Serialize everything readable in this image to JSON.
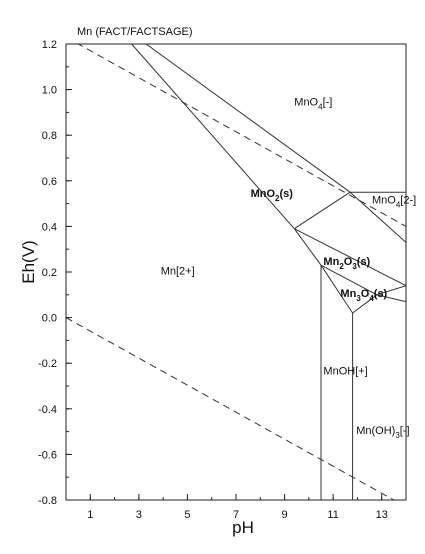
{
  "chart_data": {
    "type": "line",
    "title": "Mn (FACT/FACTSAGE)",
    "xlabel": "pH",
    "ylabel": "Eh(V)",
    "xlim": [
      0,
      14
    ],
    "ylim": [
      -0.8,
      1.2
    ],
    "x_ticks": [
      {
        "value": 1,
        "label": "1"
      },
      {
        "value": 3,
        "label": "3"
      },
      {
        "value": 5,
        "label": "5"
      },
      {
        "value": 7,
        "label": "7"
      },
      {
        "value": 9,
        "label": "9"
      },
      {
        "value": 11,
        "label": "11"
      },
      {
        "value": 13,
        "label": "13"
      }
    ],
    "y_ticks": [
      {
        "value": 1.2,
        "label": "1.2"
      },
      {
        "value": 1.0,
        "label": "1.0"
      },
      {
        "value": 0.8,
        "label": "0.8"
      },
      {
        "value": 0.6,
        "label": "0.6"
      },
      {
        "value": 0.4,
        "label": "0.4"
      },
      {
        "value": 0.2,
        "label": "0.2"
      },
      {
        "value": 0.0,
        "label": "0.0"
      },
      {
        "value": -0.2,
        "label": "-0.2"
      },
      {
        "value": -0.4,
        "label": "-0.4"
      },
      {
        "value": -0.6,
        "label": "-0.6"
      },
      {
        "value": -0.8,
        "label": "-0.8"
      }
    ],
    "water_lines": [
      {
        "style": "dashed",
        "points": [
          [
            0,
            1.23
          ],
          [
            14,
            0.4
          ]
        ]
      },
      {
        "style": "dashed",
        "points": [
          [
            0,
            0.0
          ],
          [
            13.5,
            -0.8
          ]
        ]
      }
    ],
    "boundaries": [
      {
        "points": [
          [
            2.7,
            1.2
          ],
          [
            9.4,
            0.39
          ]
        ]
      },
      {
        "points": [
          [
            3.3,
            1.2
          ],
          [
            11.7,
            0.55
          ]
        ]
      },
      {
        "points": [
          [
            11.7,
            0.55
          ],
          [
            14,
            0.33
          ]
        ]
      },
      {
        "points": [
          [
            11.7,
            0.55
          ],
          [
            14,
            0.55
          ]
        ]
      },
      {
        "points": [
          [
            11.7,
            0.55
          ],
          [
            9.4,
            0.39
          ]
        ]
      },
      {
        "points": [
          [
            9.4,
            0.39
          ],
          [
            10.5,
            0.23
          ]
        ]
      },
      {
        "points": [
          [
            9.4,
            0.39
          ],
          [
            14,
            0.14
          ]
        ]
      },
      {
        "points": [
          [
            10.5,
            0.23
          ],
          [
            11.8,
            0.02
          ]
        ]
      },
      {
        "points": [
          [
            10.5,
            0.23
          ],
          [
            12.8,
            0.1
          ]
        ]
      },
      {
        "points": [
          [
            12.8,
            0.1
          ],
          [
            11.8,
            0.02
          ]
        ]
      },
      {
        "points": [
          [
            12.8,
            0.1
          ],
          [
            14,
            0.14
          ]
        ]
      },
      {
        "points": [
          [
            12.8,
            0.1
          ],
          [
            14,
            0.07
          ]
        ]
      },
      {
        "points": [
          [
            10.5,
            0.23
          ],
          [
            10.5,
            -0.8
          ]
        ]
      },
      {
        "points": [
          [
            11.8,
            0.02
          ],
          [
            11.8,
            -0.8
          ]
        ]
      }
    ],
    "regions": [
      {
        "label": "MnO",
        "sub": "4",
        "tail": "[-]",
        "x": 9.4,
        "y": 0.93,
        "solid": false
      },
      {
        "label": "MnO",
        "sub": "2",
        "tail": "(s)",
        "x": 7.6,
        "y": 0.53,
        "solid": true
      },
      {
        "label": "MnO",
        "sub": "4",
        "tail": "[2-]",
        "x": 12.6,
        "y": 0.5,
        "solid": false
      },
      {
        "label": "Mn[2+]",
        "sub": "",
        "tail": "",
        "x": 3.9,
        "y": 0.19,
        "solid": false
      },
      {
        "label": "Mn",
        "sub": "2",
        "tail": "O",
        "sub2": "3",
        "tail2": "(s)",
        "x": 10.6,
        "y": 0.23,
        "solid": true
      },
      {
        "label": "Mn",
        "sub": "3",
        "tail": "O",
        "sub2": "4",
        "tail2": "(s)",
        "x": 11.3,
        "y": 0.09,
        "solid": true
      },
      {
        "label": "MnOH[+]",
        "sub": "",
        "tail": "",
        "x": 10.6,
        "y": -0.25,
        "solid": false
      },
      {
        "label": "Mn(OH)",
        "sub": "3",
        "tail": "[-]",
        "x": 11.95,
        "y": -0.51,
        "solid": false
      }
    ]
  }
}
